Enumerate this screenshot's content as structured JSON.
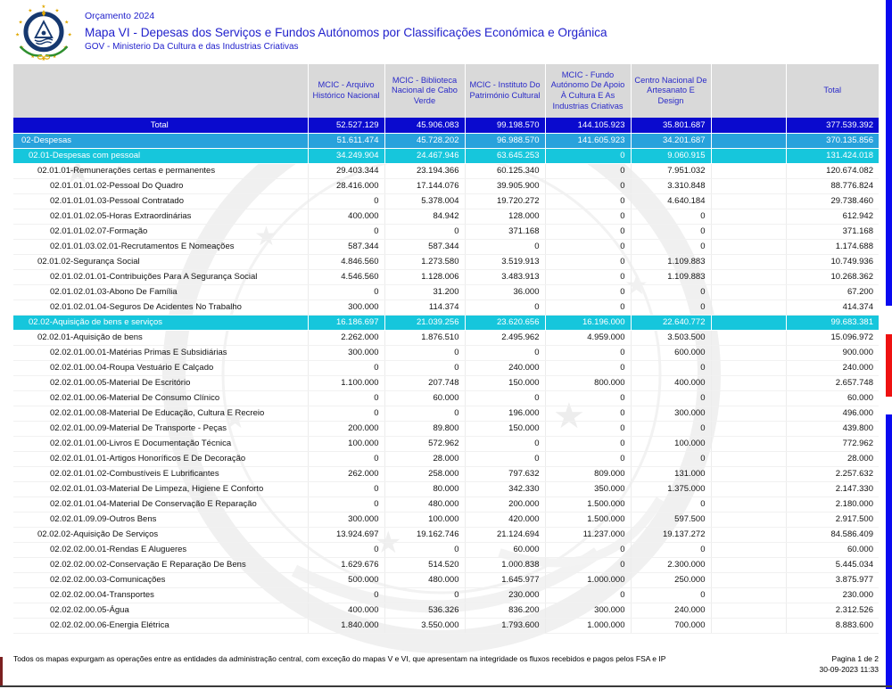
{
  "colors": {
    "titleBlue": "#2121cc",
    "headerBg": "#d9d9d9",
    "headerText": "#2a2ac8",
    "totalBg": "#0a0ace",
    "s1Bg": "#28a2dc",
    "s2Bg": "#16c6dc",
    "sideBlue": "#0a0af0",
    "sideRed": "#ee1111",
    "emblemNavy": "#16386f",
    "emblemYellow": "#e0a800",
    "emblemGreen": "#2f8f2f"
  },
  "header": {
    "budget_label": "Orçamento 2024",
    "title": "Mapa VI - Depesas dos Serviços e Fundos Autónomos por Classificações Económica e Orgánica",
    "subtitle": "GOV - Ministerio Da Cultura e das Industrias Criativas"
  },
  "table": {
    "columns": [
      "",
      "MCIC - Arquivo Histórico Nacional",
      "MCIC - Biblioteca Nacional de Cabo Verde",
      "MCIC - Instituto Do Património Cultural",
      "MCIC - Fundo Autónomo De Apoio À Cultura E As Industrias Criativas",
      "Centro Nacional De Artesanato E Design",
      "",
      "Total"
    ],
    "rows": [
      {
        "label": "Total",
        "style": "total",
        "level": 0,
        "values": [
          "52.527.129",
          "45.906.083",
          "99.198.570",
          "144.105.923",
          "35.801.687",
          "",
          "377.539.392"
        ]
      },
      {
        "label": "02-Despesas",
        "style": "s1",
        "level": 1,
        "values": [
          "51.611.474",
          "45.728.202",
          "96.988.570",
          "141.605.923",
          "34.201.687",
          "",
          "370.135.856"
        ]
      },
      {
        "label": "02.01-Despesas com pessoal",
        "style": "s2",
        "level": 2,
        "values": [
          "34.249.904",
          "24.467.946",
          "63.645.253",
          "0",
          "9.060.915",
          "",
          "131.424.018"
        ]
      },
      {
        "label": "02.01.01-Remunerações certas e permanentes",
        "style": "plain",
        "level": 3,
        "values": [
          "29.403.344",
          "23.194.366",
          "60.125.340",
          "0",
          "7.951.032",
          "",
          "120.674.082"
        ]
      },
      {
        "label": "02.01.01.01.02-Pessoal Do Quadro",
        "style": "plain",
        "level": 4,
        "values": [
          "28.416.000",
          "17.144.076",
          "39.905.900",
          "0",
          "3.310.848",
          "",
          "88.776.824"
        ]
      },
      {
        "label": "02.01.01.01.03-Pessoal Contratado",
        "style": "plain",
        "level": 4,
        "values": [
          "0",
          "5.378.004",
          "19.720.272",
          "0",
          "4.640.184",
          "",
          "29.738.460"
        ]
      },
      {
        "label": "02.01.01.02.05-Horas Extraordinárias",
        "style": "plain",
        "level": 4,
        "values": [
          "400.000",
          "84.942",
          "128.000",
          "0",
          "0",
          "",
          "612.942"
        ]
      },
      {
        "label": "02.01.01.02.07-Formação",
        "style": "plain",
        "level": 4,
        "values": [
          "0",
          "0",
          "371.168",
          "0",
          "0",
          "",
          "371.168"
        ]
      },
      {
        "label": "02.01.01.03.02.01-Recrutamentos E Nomeações",
        "style": "plain",
        "level": 4,
        "values": [
          "587.344",
          "587.344",
          "0",
          "0",
          "0",
          "",
          "1.174.688"
        ]
      },
      {
        "label": "02.01.02-Segurança Social",
        "style": "plain",
        "level": 3,
        "values": [
          "4.846.560",
          "1.273.580",
          "3.519.913",
          "0",
          "1.109.883",
          "",
          "10.749.936"
        ]
      },
      {
        "label": "02.01.02.01.01-Contribuições Para A Segurança Social",
        "style": "plain",
        "level": 4,
        "values": [
          "4.546.560",
          "1.128.006",
          "3.483.913",
          "0",
          "1.109.883",
          "",
          "10.268.362"
        ]
      },
      {
        "label": "02.01.02.01.03-Abono De Família",
        "style": "plain",
        "level": 4,
        "values": [
          "0",
          "31.200",
          "36.000",
          "0",
          "0",
          "",
          "67.200"
        ]
      },
      {
        "label": "02.01.02.01.04-Seguros De Acidentes No Trabalho",
        "style": "plain",
        "level": 4,
        "values": [
          "300.000",
          "114.374",
          "0",
          "0",
          "0",
          "",
          "414.374"
        ]
      },
      {
        "label": "02.02-Aquisição de bens e serviços",
        "style": "s2",
        "level": 2,
        "values": [
          "16.186.697",
          "21.039.256",
          "23.620.656",
          "16.196.000",
          "22.640.772",
          "",
          "99.683.381"
        ]
      },
      {
        "label": "02.02.01-Aquisição de bens",
        "style": "plain",
        "level": 3,
        "values": [
          "2.262.000",
          "1.876.510",
          "2.495.962",
          "4.959.000",
          "3.503.500",
          "",
          "15.096.972"
        ]
      },
      {
        "label": "02.02.01.00.01-Matérias Primas E Subsidiárias",
        "style": "plain",
        "level": 4,
        "values": [
          "300.000",
          "0",
          "0",
          "0",
          "600.000",
          "",
          "900.000"
        ]
      },
      {
        "label": "02.02.01.00.04-Roupa  Vestuário E Calçado",
        "style": "plain",
        "level": 4,
        "values": [
          "0",
          "0",
          "240.000",
          "0",
          "0",
          "",
          "240.000"
        ]
      },
      {
        "label": "02.02.01.00.05-Material De Escritório",
        "style": "plain",
        "level": 4,
        "values": [
          "1.100.000",
          "207.748",
          "150.000",
          "800.000",
          "400.000",
          "",
          "2.657.748"
        ]
      },
      {
        "label": "02.02.01.00.06-Material De Consumo Clínico",
        "style": "plain",
        "level": 4,
        "values": [
          "0",
          "60.000",
          "0",
          "0",
          "0",
          "",
          "60.000"
        ]
      },
      {
        "label": "02.02.01.00.08-Material De Educação, Cultura E Recreio",
        "style": "plain",
        "level": 4,
        "values": [
          "0",
          "0",
          "196.000",
          "0",
          "300.000",
          "",
          "496.000"
        ]
      },
      {
        "label": "02.02.01.00.09-Material De Transporte - Peças",
        "style": "plain",
        "level": 4,
        "values": [
          "200.000",
          "89.800",
          "150.000",
          "0",
          "0",
          "",
          "439.800"
        ]
      },
      {
        "label": "02.02.01.01.00-Livros E Documentação Técnica",
        "style": "plain",
        "level": 4,
        "values": [
          "100.000",
          "572.962",
          "0",
          "0",
          "100.000",
          "",
          "772.962"
        ]
      },
      {
        "label": "02.02.01.01.01-Artigos Honoríficos E De Decoração",
        "style": "plain",
        "level": 4,
        "values": [
          "0",
          "28.000",
          "0",
          "0",
          "0",
          "",
          "28.000"
        ]
      },
      {
        "label": "02.02.01.01.02-Combustíveis E Lubrificantes",
        "style": "plain",
        "level": 4,
        "values": [
          "262.000",
          "258.000",
          "797.632",
          "809.000",
          "131.000",
          "",
          "2.257.632"
        ]
      },
      {
        "label": "02.02.01.01.03-Material De Limpeza, Higiene E Conforto",
        "style": "plain",
        "level": 4,
        "values": [
          "0",
          "80.000",
          "342.330",
          "350.000",
          "1.375.000",
          "",
          "2.147.330"
        ]
      },
      {
        "label": "02.02.01.01.04-Material De Conservação E Reparação",
        "style": "plain",
        "level": 4,
        "values": [
          "0",
          "480.000",
          "200.000",
          "1.500.000",
          "0",
          "",
          "2.180.000"
        ]
      },
      {
        "label": "02.02.01.09.09-Outros Bens",
        "style": "plain",
        "level": 4,
        "values": [
          "300.000",
          "100.000",
          "420.000",
          "1.500.000",
          "597.500",
          "",
          "2.917.500"
        ]
      },
      {
        "label": "02.02.02-Aquisição De Serviços",
        "style": "plain",
        "level": 3,
        "values": [
          "13.924.697",
          "19.162.746",
          "21.124.694",
          "11.237.000",
          "19.137.272",
          "",
          "84.586.409"
        ]
      },
      {
        "label": "02.02.02.00.01-Rendas E Alugueres",
        "style": "plain",
        "level": 4,
        "values": [
          "0",
          "0",
          "60.000",
          "0",
          "0",
          "",
          "60.000"
        ]
      },
      {
        "label": "02.02.02.00.02-Conservação E Reparação De Bens",
        "style": "plain",
        "level": 4,
        "values": [
          "1.629.676",
          "514.520",
          "1.000.838",
          "0",
          "2.300.000",
          "",
          "5.445.034"
        ]
      },
      {
        "label": "02.02.02.00.03-Comunicações",
        "style": "plain",
        "level": 4,
        "values": [
          "500.000",
          "480.000",
          "1.645.977",
          "1.000.000",
          "250.000",
          "",
          "3.875.977"
        ]
      },
      {
        "label": "02.02.02.00.04-Transportes",
        "style": "plain",
        "level": 4,
        "values": [
          "0",
          "0",
          "230.000",
          "0",
          "0",
          "",
          "230.000"
        ]
      },
      {
        "label": "02.02.02.00.05-Água",
        "style": "plain",
        "level": 4,
        "values": [
          "400.000",
          "536.326",
          "836.200",
          "300.000",
          "240.000",
          "",
          "2.312.526"
        ]
      },
      {
        "label": "02.02.02.00.06-Energia Elétrica",
        "style": "plain",
        "level": 4,
        "values": [
          "1.840.000",
          "3.550.000",
          "1.793.600",
          "1.000.000",
          "700.000",
          "",
          "8.883.600"
        ]
      }
    ]
  },
  "footer": {
    "note": "Todos os mapas expurgam as operações entre as entidades da administração central, com exceção do mapas V e VI, que apresentam na integridade os fluxos recebidos e pagos pelos FSA e IP",
    "page_info": "Pagina 1 de 2",
    "datetime": "30-09-2023 11:33"
  }
}
